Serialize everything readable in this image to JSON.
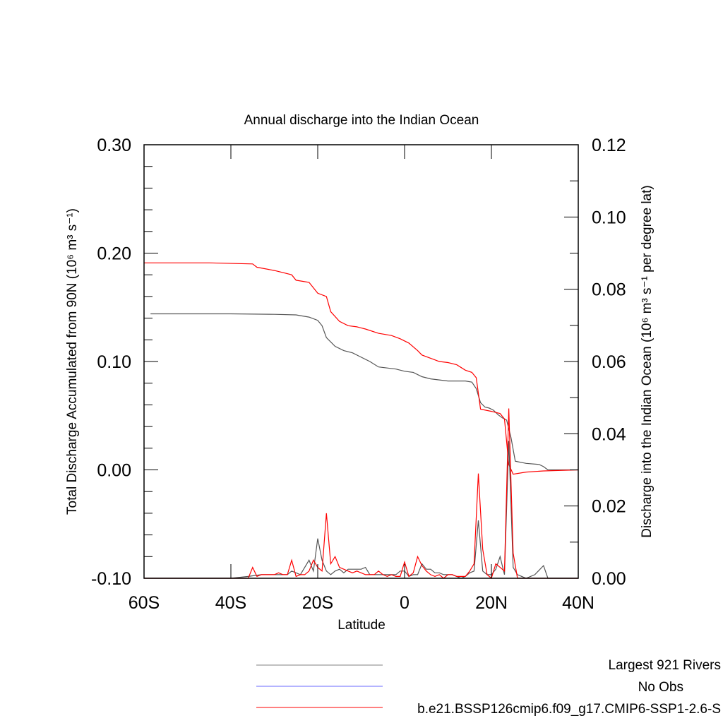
{
  "chart_data": {
    "type": "line",
    "title": "Annual discharge into the Indian Ocean",
    "xlabel": "Latitude",
    "ylabel_left": "Total Discharge Accumulated from 90N (10⁶ m³ s⁻¹)",
    "ylabel_right": "Discharge into the Indian Ocean (10⁶ m³ s⁻¹ per degree lat)",
    "xlim": [
      -60,
      40
    ],
    "ylim_left": [
      -0.1,
      0.3
    ],
    "ylim_right": [
      0.0,
      0.12
    ],
    "x_ticks": [
      -60,
      -40,
      -20,
      0,
      20,
      40
    ],
    "x_tick_labels": [
      "60S",
      "40S",
      "20S",
      "0",
      "20N",
      "40N"
    ],
    "y_left_ticks": [
      -0.1,
      0.0,
      0.1,
      0.2,
      0.3
    ],
    "y_left_tick_labels": [
      "-0.10",
      "0.00",
      "0.10",
      "0.20",
      "0.30"
    ],
    "y_right_ticks": [
      0.0,
      0.02,
      0.04,
      0.06,
      0.08,
      0.1,
      0.12
    ],
    "y_right_tick_labels": [
      "0.00",
      "0.02",
      "0.04",
      "0.06",
      "0.08",
      "0.10",
      "0.12"
    ],
    "legend": {
      "placement": "bottom",
      "entries": [
        {
          "label": "Largest 921 Rivers",
          "color": "#808080"
        },
        {
          "label": "No Obs",
          "color": "#6a6aff"
        },
        {
          "label": "b.e21.BSSP126cmip6.f09_g17.CMIP6-SSP1-2.6-S",
          "color": "#ff0000"
        }
      ]
    },
    "series": [
      {
        "name": "Largest 921 Rivers",
        "axis": "left",
        "color": "#555555",
        "x": [
          -58.5,
          -40,
          -30,
          -25,
          -22,
          -20,
          -19,
          -18,
          -16,
          -14,
          -12,
          -10,
          -8,
          -6,
          -4,
          -2,
          0,
          2,
          4,
          6,
          8,
          10,
          12,
          14,
          15.5,
          16.5,
          17.5,
          18.5,
          19.5,
          20.5,
          21.5,
          22.5,
          23.5,
          24.5,
          25.5,
          28,
          31,
          32,
          33,
          40
        ],
        "y": [
          0.144,
          0.144,
          0.1435,
          0.143,
          0.141,
          0.138,
          0.133,
          0.122,
          0.114,
          0.11,
          0.108,
          0.104,
          0.1,
          0.095,
          0.094,
          0.093,
          0.091,
          0.09,
          0.086,
          0.084,
          0.083,
          0.082,
          0.082,
          0.082,
          0.081,
          0.075,
          0.062,
          0.058,
          0.057,
          0.055,
          0.051,
          0.048,
          0.046,
          0.03,
          0.008,
          0.006,
          0.005,
          0.003,
          0.0,
          0.0
        ]
      },
      {
        "name": "b.e21.BSSP126cmip6.f09_g17.CMIP6-SSP1-2.6-S",
        "axis": "left",
        "color": "#ff0000",
        "x": [
          -60,
          -45,
          -35,
          -34,
          -30,
          -28,
          -26,
          -25,
          -22,
          -21,
          -20,
          -18,
          -17,
          -15,
          -13,
          -11,
          -9,
          -6,
          -3,
          -1,
          1,
          3,
          4,
          6,
          8,
          10,
          12,
          14,
          15.5,
          16.5,
          17.5,
          20,
          22,
          23,
          24,
          25,
          28,
          32,
          40
        ],
        "y": [
          0.191,
          0.191,
          0.19,
          0.187,
          0.184,
          0.182,
          0.18,
          0.175,
          0.173,
          0.168,
          0.163,
          0.16,
          0.146,
          0.137,
          0.133,
          0.132,
          0.13,
          0.126,
          0.124,
          0.121,
          0.117,
          0.11,
          0.106,
          0.103,
          0.1,
          0.099,
          0.097,
          0.092,
          0.09,
          0.085,
          0.056,
          0.054,
          0.052,
          0.047,
          0.005,
          -0.004,
          -0.002,
          -0.001,
          0.0
        ]
      },
      {
        "name": "Largest 921 Rivers (per degree)",
        "axis": "right",
        "color": "#555555",
        "x": [
          -60,
          -40,
          -36,
          -33,
          -30,
          -27,
          -26,
          -25,
          -24,
          -23,
          -22,
          -21,
          -20,
          -19,
          -18,
          -17,
          -16,
          -15,
          -14,
          -13,
          -12,
          -11,
          -10,
          -9,
          -8,
          -7,
          -6,
          -5,
          -4,
          -3,
          -2,
          -1,
          0,
          1,
          2,
          3,
          4,
          5,
          6,
          7,
          8,
          9,
          10,
          11,
          12,
          13,
          14,
          15,
          16,
          17,
          18,
          19,
          20,
          21,
          22,
          23,
          24,
          25,
          26,
          27,
          28,
          30,
          32,
          33,
          40
        ],
        "y": [
          0.0,
          0.0,
          0.0005,
          0.001,
          0.001,
          0.001,
          0.002,
          0.0015,
          0.001,
          0.003,
          0.005,
          0.002,
          0.011,
          0.005,
          0.002,
          0.001,
          0.002,
          0.0025,
          0.0015,
          0.0025,
          0.0025,
          0.0025,
          0.0025,
          0.003,
          0.001,
          0.001,
          0.001,
          0.001,
          0.001,
          0.001,
          0.001,
          0.002,
          0.002,
          0.0005,
          0.001,
          0.001,
          0.004,
          0.0025,
          0.0025,
          0.0015,
          0.0015,
          0.001,
          0.001,
          0.001,
          0.0005,
          0.0,
          0.0005,
          0.0015,
          0.002,
          0.016,
          0.002,
          0.001,
          0.001,
          0.0025,
          0.006,
          0.001,
          0.038,
          0.003,
          0.001,
          0.0005,
          0.0,
          0.001,
          0.0035,
          0.0,
          0.0
        ]
      },
      {
        "name": "b.e21.BSSP126cmip6.f09_g17.CMIP6-SSP1-2.6-S (per degree)",
        "axis": "right",
        "color": "#ff0000",
        "x": [
          -60,
          -40,
          -36,
          -35,
          -34,
          -33,
          -31,
          -30,
          -29,
          -28,
          -27,
          -26,
          -25,
          -24,
          -23,
          -22,
          -21,
          -20,
          -19,
          -18,
          -17,
          -16,
          -15,
          -14,
          -13,
          -12,
          -11,
          -10,
          -9,
          -8,
          -7,
          -6,
          -5,
          -4,
          -3,
          -2,
          -1,
          0,
          1,
          2,
          3,
          4,
          5,
          6,
          7,
          8,
          9,
          10,
          11,
          12,
          13,
          14,
          15,
          16,
          17,
          18,
          19,
          20,
          21,
          22,
          23,
          24,
          25,
          26,
          40
        ],
        "y": [
          0.0,
          0.0,
          0.0,
          0.003,
          0.0005,
          0.001,
          0.001,
          0.001,
          0.0015,
          0.001,
          0.001,
          0.005,
          0.0005,
          0.001,
          0.001,
          0.002,
          0.005,
          0.003,
          0.002,
          0.018,
          0.004,
          0.006,
          0.003,
          0.0025,
          0.002,
          0.0015,
          0.002,
          0.0015,
          0.001,
          0.001,
          0.001,
          0.002,
          0.001,
          0.0005,
          0.001,
          0.0005,
          0.0005,
          0.0045,
          0.0005,
          0.0015,
          0.006,
          0.0035,
          0.002,
          0.001,
          0.0005,
          0.001,
          0.0,
          0.001,
          0.001,
          0.0005,
          0.0005,
          0.0005,
          0.002,
          0.004,
          0.029,
          0.008,
          0.001,
          0.0,
          0.004,
          0.003,
          0.002,
          0.047,
          0.007,
          0.0,
          0.0
        ]
      }
    ]
  }
}
